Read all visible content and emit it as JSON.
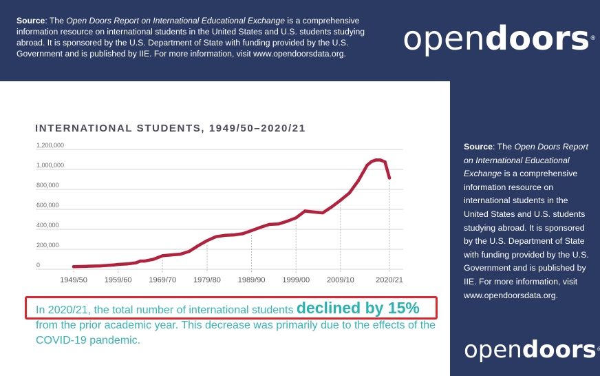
{
  "banner": {
    "source_label": "Source",
    "source_prefix": ": The ",
    "report_name": "Open Doors Report on International Educational Exchange",
    "source_rest": " is a comprehensive information resource on international students in the United States and U.S. students studying abroad. It is sponsored by the U.S. Department of State with funding provided by the U.S. Government and is published by IIE. For more information, visit www.opendoorsdata.org.",
    "logo_light": "open",
    "logo_bold": "doors",
    "logo_mark": "®"
  },
  "side_panel": {
    "source_label": "Source",
    "source_prefix": ": The ",
    "report_name": "Open Doors Report on International Educational Exchange",
    "source_rest": " is a comprehensive information resource on international students in the United States and U.S. students studying abroad. It is sponsored by the U.S. Department of State with funding provided by the U.S. Government and is published by IIE. For more information, visit www.opendoorsdata.org.",
    "logo_light": "open",
    "logo_bold": "doors",
    "logo_mark": "®"
  },
  "summary": {
    "before": "In 2020/21, the total number of international students ",
    "highlight": "declined by 15%",
    "after": " from the prior academic year. This decrease was primarily due to the effects of the COVID-19 pandemic."
  },
  "colors": {
    "navy": "#2b3a63",
    "line": "#b3213d",
    "accent_teal": "#33b5b5",
    "highlight_box": "#e0262a"
  },
  "chart_data": {
    "type": "line",
    "title": "INTERNATIONAL STUDENTS, 1949/50–2020/21",
    "xlabel": "",
    "ylabel": "",
    "ylim": [
      0,
      1200000
    ],
    "xlim": [
      1949,
      2020
    ],
    "grid": true,
    "y_ticks": [
      {
        "value": 0,
        "label": "0"
      },
      {
        "value": 200000,
        "label": "200,000"
      },
      {
        "value": 400000,
        "label": "400,000"
      },
      {
        "value": 600000,
        "label": "600,000"
      },
      {
        "value": 800000,
        "label": "800,000"
      },
      {
        "value": 1000000,
        "label": "1,000,000"
      },
      {
        "value": 1200000,
        "label": "1,200,000"
      }
    ],
    "x_ticks": [
      {
        "value": 1949,
        "label": "1949/50"
      },
      {
        "value": 1959,
        "label": "1959/60"
      },
      {
        "value": 1969,
        "label": "1969/70"
      },
      {
        "value": 1979,
        "label": "1979/80"
      },
      {
        "value": 1989,
        "label": "1989/90"
      },
      {
        "value": 1999,
        "label": "1999/00"
      },
      {
        "value": 2009,
        "label": "2009/10"
      },
      {
        "value": 2020,
        "label": "2020/21"
      }
    ],
    "series": [
      {
        "x": [
          1949,
          1952,
          1955,
          1958,
          1959,
          1961,
          1963,
          1964,
          1965,
          1967,
          1969,
          1971,
          1973,
          1975,
          1977,
          1979,
          1981,
          1983,
          1985,
          1987,
          1989,
          1991,
          1993,
          1995,
          1997,
          1999,
          2001,
          2003,
          2005,
          2007,
          2009,
          2011,
          2013,
          2015,
          2016,
          2017,
          2018,
          2019,
          2020
        ],
        "values": [
          26000,
          30000,
          34000,
          43000,
          48000,
          53000,
          65000,
          82000,
          82000,
          101000,
          135000,
          144000,
          151000,
          179000,
          236000,
          286000,
          326000,
          339000,
          344000,
          356000,
          387000,
          420000,
          449000,
          453000,
          481000,
          515000,
          583000,
          573000,
          565000,
          624000,
          691000,
          764000,
          886000,
          1043000,
          1079000,
          1095000,
          1094000,
          1075000,
          914000
        ]
      }
    ]
  }
}
